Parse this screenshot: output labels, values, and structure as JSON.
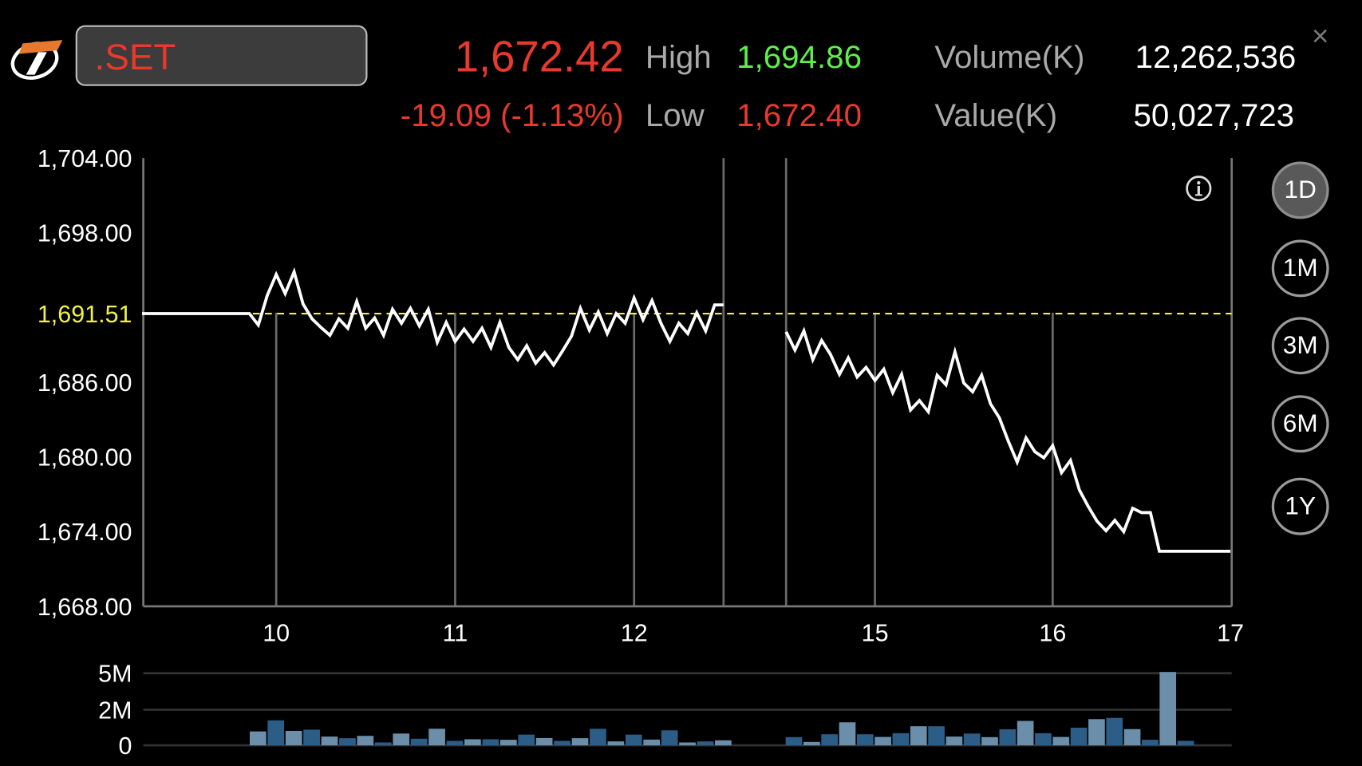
{
  "header": {
    "symbol": ".SET",
    "last_price": "1,672.42",
    "change": "-19.09 (-1.13%)",
    "high_label": "High",
    "high_value": "1,694.86",
    "low_label": "Low",
    "low_value": "1,672.40",
    "volume_label": "Volume(K)",
    "volume_value": "12,262,536",
    "value_label": "Value(K)",
    "value_value": "50,027,723",
    "close_label": "×"
  },
  "colors": {
    "down": "#e8392c",
    "up": "#5ef04a",
    "prev_close_line": "#f0f04a",
    "price_line": "#ffffff",
    "volume_light": "#6b8fab",
    "volume_dark": "#2c5d87"
  },
  "range_buttons": [
    {
      "label": "1D",
      "active": true
    },
    {
      "label": "1M",
      "active": false
    },
    {
      "label": "3M",
      "active": false
    },
    {
      "label": "6M",
      "active": false
    },
    {
      "label": "1Y",
      "active": false
    }
  ],
  "icons": {
    "info": "info-icon",
    "close": "close-icon",
    "logo": "brand-logo"
  },
  "chart_data": [
    {
      "type": "line",
      "ylim": [
        1668,
        1704
      ],
      "y_ticks": [
        "1,704.00",
        "1,698.00",
        "1,686.00",
        "1,680.00",
        "1,674.00",
        "1,668.00"
      ],
      "y_tick_values": [
        1704,
        1698,
        1686,
        1680,
        1674,
        1668
      ],
      "x_ticks": [
        "10",
        "11",
        "12",
        "15",
        "16",
        "17"
      ],
      "session_breaks": [
        "12:30",
        "14:30"
      ],
      "prev_close": {
        "value": 1691.51,
        "label": "1,691.51"
      },
      "grid": true,
      "series": [
        {
          "points": [
            [
              "09:15",
              1691.51
            ],
            [
              "09:51",
              1691.51
            ],
            [
              "09:54",
              1690.6
            ],
            [
              "09:57",
              1692.98
            ],
            [
              "10:00",
              1694.65
            ],
            [
              "10:03",
              1693.12
            ],
            [
              "10:06",
              1694.86
            ],
            [
              "10:09",
              1692.28
            ],
            [
              "10:12",
              1691.09
            ],
            [
              "10:15",
              1690.4
            ],
            [
              "10:18",
              1689.77
            ],
            [
              "10:21",
              1691.09
            ],
            [
              "10:24",
              1690.33
            ],
            [
              "10:27",
              1692.49
            ],
            [
              "10:30",
              1690.33
            ],
            [
              "10:33",
              1691.16
            ],
            [
              "10:36",
              1689.77
            ],
            [
              "10:39",
              1691.86
            ],
            [
              "10:42",
              1690.74
            ],
            [
              "10:45",
              1691.93
            ],
            [
              "10:48",
              1690.53
            ],
            [
              "10:51",
              1691.86
            ],
            [
              "10:54",
              1689.21
            ],
            [
              "10:57",
              1690.81
            ],
            [
              "11:00",
              1689.28
            ],
            [
              "11:03",
              1690.26
            ],
            [
              "11:06",
              1689.28
            ],
            [
              "11:09",
              1690.33
            ],
            [
              "11:12",
              1688.79
            ],
            [
              "11:15",
              1690.81
            ],
            [
              "11:18",
              1688.79
            ],
            [
              "11:21",
              1687.81
            ],
            [
              "11:24",
              1688.93
            ],
            [
              "11:27",
              1687.53
            ],
            [
              "11:30",
              1688.37
            ],
            [
              "11:33",
              1687.39
            ],
            [
              "11:36",
              1688.51
            ],
            [
              "11:39",
              1689.7
            ],
            [
              "11:42",
              1691.93
            ],
            [
              "11:45",
              1690.19
            ],
            [
              "11:48",
              1691.65
            ],
            [
              "11:51",
              1689.91
            ],
            [
              "11:54",
              1691.51
            ],
            [
              "11:57",
              1690.74
            ],
            [
              "12:00",
              1692.77
            ],
            [
              "12:03",
              1691.02
            ],
            [
              "12:06",
              1692.56
            ],
            [
              "12:09",
              1690.74
            ],
            [
              "12:12",
              1689.28
            ],
            [
              "12:15",
              1690.74
            ],
            [
              "12:18",
              1689.91
            ],
            [
              "12:21",
              1691.58
            ],
            [
              "12:24",
              1690.12
            ],
            [
              "12:27",
              1692.21
            ],
            [
              "12:30",
              1692.21
            ]
          ]
        },
        {
          "points": [
            [
              "14:30",
              1690.05
            ],
            [
              "14:33",
              1688.58
            ],
            [
              "14:36",
              1690.12
            ],
            [
              "14:39",
              1687.81
            ],
            [
              "14:42",
              1689.35
            ],
            [
              "14:45",
              1688.23
            ],
            [
              "14:48",
              1686.63
            ],
            [
              "14:51",
              1687.95
            ],
            [
              "14:54",
              1686.42
            ],
            [
              "14:57",
              1687.19
            ],
            [
              "15:00",
              1686.14
            ],
            [
              "15:03",
              1687.05
            ],
            [
              "15:06",
              1685.16
            ],
            [
              "15:09",
              1686.63
            ],
            [
              "15:12",
              1683.77
            ],
            [
              "15:15",
              1684.53
            ],
            [
              "15:18",
              1683.63
            ],
            [
              "15:21",
              1686.56
            ],
            [
              "15:24",
              1685.79
            ],
            [
              "15:27",
              1688.44
            ],
            [
              "15:30",
              1685.93
            ],
            [
              "15:33",
              1685.23
            ],
            [
              "15:36",
              1686.56
            ],
            [
              "15:39",
              1684.26
            ],
            [
              "15:42",
              1683.14
            ],
            [
              "15:45",
              1681.26
            ],
            [
              "15:48",
              1679.58
            ],
            [
              "15:51",
              1681.53
            ],
            [
              "15:54",
              1680.42
            ],
            [
              "15:57",
              1679.93
            ],
            [
              "16:00",
              1680.91
            ],
            [
              "16:03",
              1678.74
            ],
            [
              "16:06",
              1679.72
            ],
            [
              "16:09",
              1677.35
            ],
            [
              "16:12",
              1676.02
            ],
            [
              "16:15",
              1674.84
            ],
            [
              "16:18",
              1674.07
            ],
            [
              "16:21",
              1674.91
            ],
            [
              "16:24",
              1674.0
            ],
            [
              "16:27",
              1675.88
            ],
            [
              "16:30",
              1675.53
            ],
            [
              "16:33",
              1675.53
            ],
            [
              "16:36",
              1672.42
            ],
            [
              "17:00",
              1672.42
            ]
          ]
        }
      ]
    },
    {
      "type": "bar",
      "y_ticks": [
        "5M",
        "2M",
        "0"
      ],
      "y_tick_values": [
        5,
        2,
        0
      ],
      "unit": "M",
      "grid": true,
      "bars": [
        [
          "09:54",
          0.78
        ],
        [
          "10:00",
          1.4
        ],
        [
          "10:06",
          0.81
        ],
        [
          "10:12",
          0.88
        ],
        [
          "10:18",
          0.49
        ],
        [
          "10:24",
          0.4
        ],
        [
          "10:30",
          0.53
        ],
        [
          "10:36",
          0.16
        ],
        [
          "10:42",
          0.66
        ],
        [
          "10:48",
          0.37
        ],
        [
          "10:54",
          0.93
        ],
        [
          "11:00",
          0.25
        ],
        [
          "11:06",
          0.34
        ],
        [
          "11:12",
          0.34
        ],
        [
          "11:18",
          0.31
        ],
        [
          "11:24",
          0.6
        ],
        [
          "11:30",
          0.41
        ],
        [
          "11:36",
          0.25
        ],
        [
          "11:42",
          0.4
        ],
        [
          "11:48",
          0.93
        ],
        [
          "11:54",
          0.22
        ],
        [
          "12:00",
          0.6
        ],
        [
          "12:06",
          0.32
        ],
        [
          "12:12",
          0.84
        ],
        [
          "12:18",
          0.16
        ],
        [
          "12:24",
          0.22
        ],
        [
          "12:30",
          0.28
        ],
        [
          "14:33",
          0.46
        ],
        [
          "14:39",
          0.19
        ],
        [
          "14:45",
          0.62
        ],
        [
          "14:51",
          1.29
        ],
        [
          "14:57",
          0.62
        ],
        [
          "15:03",
          0.47
        ],
        [
          "15:09",
          0.68
        ],
        [
          "15:15",
          1.07
        ],
        [
          "15:21",
          1.07
        ],
        [
          "15:27",
          0.49
        ],
        [
          "15:33",
          0.66
        ],
        [
          "15:39",
          0.46
        ],
        [
          "15:45",
          0.9
        ],
        [
          "15:51",
          1.37
        ],
        [
          "15:57",
          0.68
        ],
        [
          "16:03",
          0.47
        ],
        [
          "16:09",
          0.99
        ],
        [
          "16:15",
          1.47
        ],
        [
          "16:21",
          1.54
        ],
        [
          "16:27",
          0.91
        ],
        [
          "16:33",
          0.31
        ],
        [
          "16:39",
          5.1
        ],
        [
          "16:45",
          0.25
        ]
      ]
    }
  ]
}
